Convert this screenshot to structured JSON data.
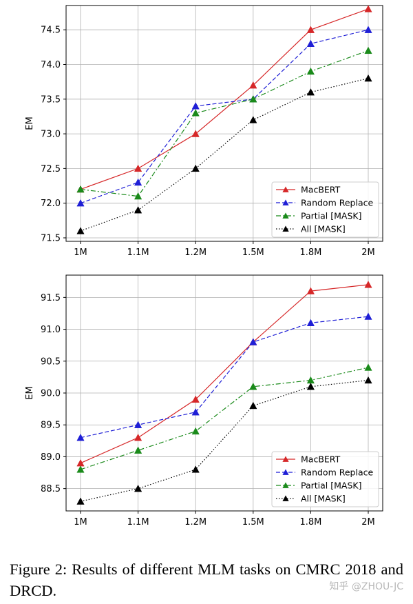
{
  "chart_data": [
    {
      "type": "line",
      "categories": [
        "1M",
        "1.1M",
        "1.2M",
        "1.5M",
        "1.8M",
        "2M"
      ],
      "ylabel": "EM",
      "xlabel": "",
      "ylim": [
        71.45,
        74.85
      ],
      "yticks": [
        71.5,
        72.0,
        72.5,
        73.0,
        73.5,
        74.0,
        74.5
      ],
      "grid": true,
      "legend_position": "lower-right",
      "series": [
        {
          "name": "MacBERT",
          "color": "#d62728",
          "dash": "solid",
          "marker": "triangle",
          "values": [
            72.2,
            72.5,
            73.0,
            73.7,
            74.5,
            74.8
          ]
        },
        {
          "name": "Random Replace",
          "color": "#1f1fd6",
          "dash": "dashed",
          "marker": "triangle",
          "values": [
            72.0,
            72.3,
            73.4,
            73.5,
            74.3,
            74.5
          ]
        },
        {
          "name": "Partial [MASK]",
          "color": "#1a8a1a",
          "dash": "dashdot",
          "marker": "triangle",
          "values": [
            72.2,
            72.1,
            73.3,
            73.5,
            73.9,
            74.2
          ]
        },
        {
          "name": "All [MASK]",
          "color": "#000000",
          "dash": "dotted",
          "marker": "triangle",
          "values": [
            71.6,
            71.9,
            72.5,
            73.2,
            73.6,
            73.8
          ]
        }
      ]
    },
    {
      "type": "line",
      "categories": [
        "1M",
        "1.1M",
        "1.2M",
        "1.5M",
        "1.8M",
        "2M"
      ],
      "ylabel": "EM",
      "xlabel": "",
      "ylim": [
        88.15,
        91.85
      ],
      "yticks": [
        88.5,
        89.0,
        89.5,
        90.0,
        90.5,
        91.0,
        91.5
      ],
      "grid": true,
      "legend_position": "lower-right",
      "series": [
        {
          "name": "MacBERT",
          "color": "#d62728",
          "dash": "solid",
          "marker": "triangle",
          "values": [
            88.9,
            89.3,
            89.9,
            90.8,
            91.6,
            91.7
          ]
        },
        {
          "name": "Random Replace",
          "color": "#1f1fd6",
          "dash": "dashed",
          "marker": "triangle",
          "values": [
            89.3,
            89.5,
            89.7,
            90.8,
            91.1,
            91.2
          ]
        },
        {
          "name": "Partial [MASK]",
          "color": "#1a8a1a",
          "dash": "dashdot",
          "marker": "triangle",
          "values": [
            88.8,
            89.1,
            89.4,
            90.1,
            90.2,
            90.4
          ]
        },
        {
          "name": "All [MASK]",
          "color": "#000000",
          "dash": "dotted",
          "marker": "triangle",
          "values": [
            88.3,
            88.5,
            88.8,
            89.8,
            90.1,
            90.2
          ]
        }
      ]
    }
  ],
  "caption": "Figure 2:   Results of different MLM tasks on CMRC 2018 and DRCD.",
  "watermark": "知乎 @ZHOU-JC"
}
